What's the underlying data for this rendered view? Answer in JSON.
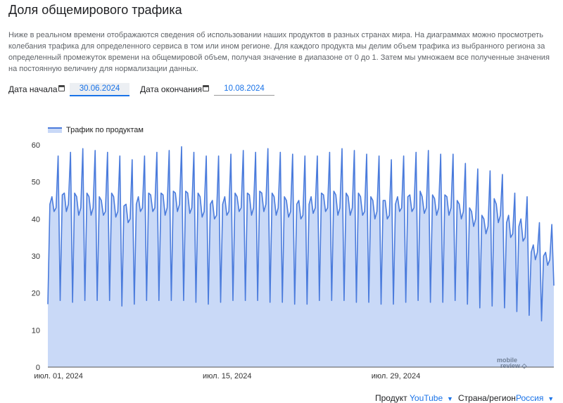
{
  "header": {
    "title": "Доля общемирового трафика",
    "description": "Ниже в реальном времени отображаются сведения об использовании наших продуктов в разных странах мира. На диаграммах можно просмотреть колебания трафика для определенного сервиса в том или ином регионе. Для каждого продукта мы делим объем трафика из выбранного региона за определенный промежуток времени на общемировой объем, получая значение в диапазоне от 0 до 1. Затем мы умножаем все полученные значения на постоянную величину для нормализации данных."
  },
  "filters": {
    "start_label": "Дата начала",
    "start_value": "30.06.2024",
    "end_label": "Дата окончания",
    "end_value": "10.08.2024"
  },
  "footer": {
    "product_label": "Продукт",
    "product_value": "YouTube",
    "region_label": "Страна/регион",
    "region_value": "Россия"
  },
  "watermark": "mobile review",
  "colors": {
    "line": "#4a7bdc",
    "fill": "#c9d9f7",
    "accent": "#1a73e8"
  },
  "chart_data": {
    "type": "area",
    "legend": "Трафик по продуктам",
    "legend_position": "top-left",
    "ylim": [
      0,
      60
    ],
    "yticks": [
      0,
      10,
      20,
      30,
      40,
      50,
      60
    ],
    "xtick_labels": [
      "июл. 01, 2024",
      "июл. 15, 2024",
      "июл. 29, 2024"
    ],
    "x_start": "2024-06-30",
    "x_end": "2024-08-10",
    "grid": false,
    "values": [
      17,
      44,
      46,
      42,
      43,
      57,
      18,
      46.5,
      47,
      42,
      44,
      58,
      17.5,
      47,
      46,
      41,
      43,
      59,
      18,
      47,
      46,
      41,
      43,
      58.5,
      18,
      46,
      45,
      41,
      42,
      58,
      18,
      47,
      46,
      40.5,
      42,
      57,
      16.5,
      43.5,
      44,
      39,
      40,
      56,
      17,
      44,
      46,
      42,
      43,
      57,
      18,
      47,
      46.5,
      42,
      43,
      58,
      18,
      47,
      46.5,
      41,
      43,
      58.5,
      18,
      47.5,
      47,
      42,
      44,
      59.5,
      18,
      47.5,
      47,
      41.5,
      43,
      58,
      17.5,
      47,
      46,
      40.5,
      42,
      57,
      17,
      44,
      45,
      40,
      41,
      57,
      17.5,
      44,
      46,
      41,
      42,
      57.5,
      18,
      47,
      46,
      42,
      43,
      58.5,
      18,
      47,
      46.5,
      41,
      43,
      58,
      18,
      47.5,
      47,
      42,
      44,
      59,
      17.5,
      47,
      46,
      41,
      43,
      58,
      17.5,
      46,
      45,
      40.5,
      42,
      57.5,
      17,
      44,
      45,
      40,
      41,
      57,
      17,
      44,
      46,
      41.5,
      43,
      57,
      18,
      47,
      46.5,
      42,
      43,
      58,
      18,
      47.5,
      46.5,
      41,
      43,
      59,
      18,
      47,
      46,
      41,
      43,
      58.5,
      17.5,
      47,
      46,
      41,
      42,
      57.5,
      17.5,
      46,
      45,
      40,
      42,
      57,
      17,
      45,
      45,
      40,
      41,
      56,
      17,
      44,
      46,
      42,
      43,
      57,
      17.5,
      46,
      46.5,
      42,
      43,
      58,
      18,
      47.5,
      46,
      41.5,
      43,
      58.5,
      17.5,
      46.5,
      45.5,
      41,
      43,
      57.5,
      17.5,
      46.5,
      46,
      41,
      43,
      57.5,
      18,
      45,
      44,
      40,
      42,
      55,
      17,
      43,
      42,
      38,
      40,
      53.5,
      16,
      41,
      40,
      36,
      38,
      53,
      16.5,
      45.5,
      44,
      39,
      41,
      52,
      16,
      39,
      41,
      35,
      36,
      47,
      15,
      38,
      40,
      34,
      35,
      46,
      14,
      31,
      33,
      29,
      31,
      39,
      12.5,
      30,
      31,
      27.5,
      29,
      38.5,
      22
    ]
  }
}
